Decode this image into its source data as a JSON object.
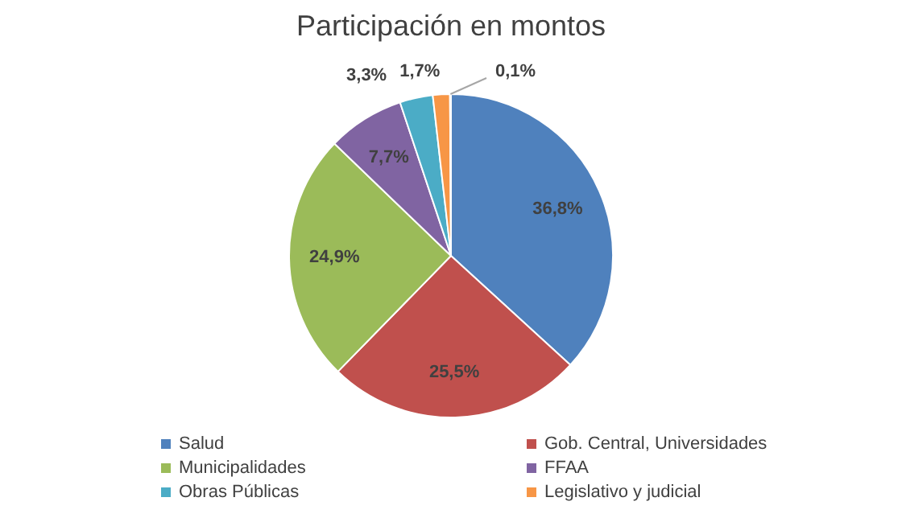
{
  "chart_data": {
    "type": "pie",
    "title": "Participación en montos",
    "categories": [
      "Salud",
      "Gob. Central, Universidades",
      "Municipalidades",
      "FFAA",
      "Obras Públicas",
      "Legislativo y judicial",
      null
    ],
    "values": [
      36.8,
      25.5,
      24.9,
      7.7,
      3.3,
      1.7,
      0.1
    ],
    "colors": [
      "#4f81bd",
      "#c0504d",
      "#9bbb59",
      "#8064a2",
      "#4bacc6",
      "#f79646",
      "#2c4d75"
    ],
    "value_labels": [
      "36,8%",
      "25,5%",
      "24,9%",
      "7,7%",
      "3,3%",
      "1,7%",
      "0,1%"
    ],
    "legend": "bottom"
  }
}
